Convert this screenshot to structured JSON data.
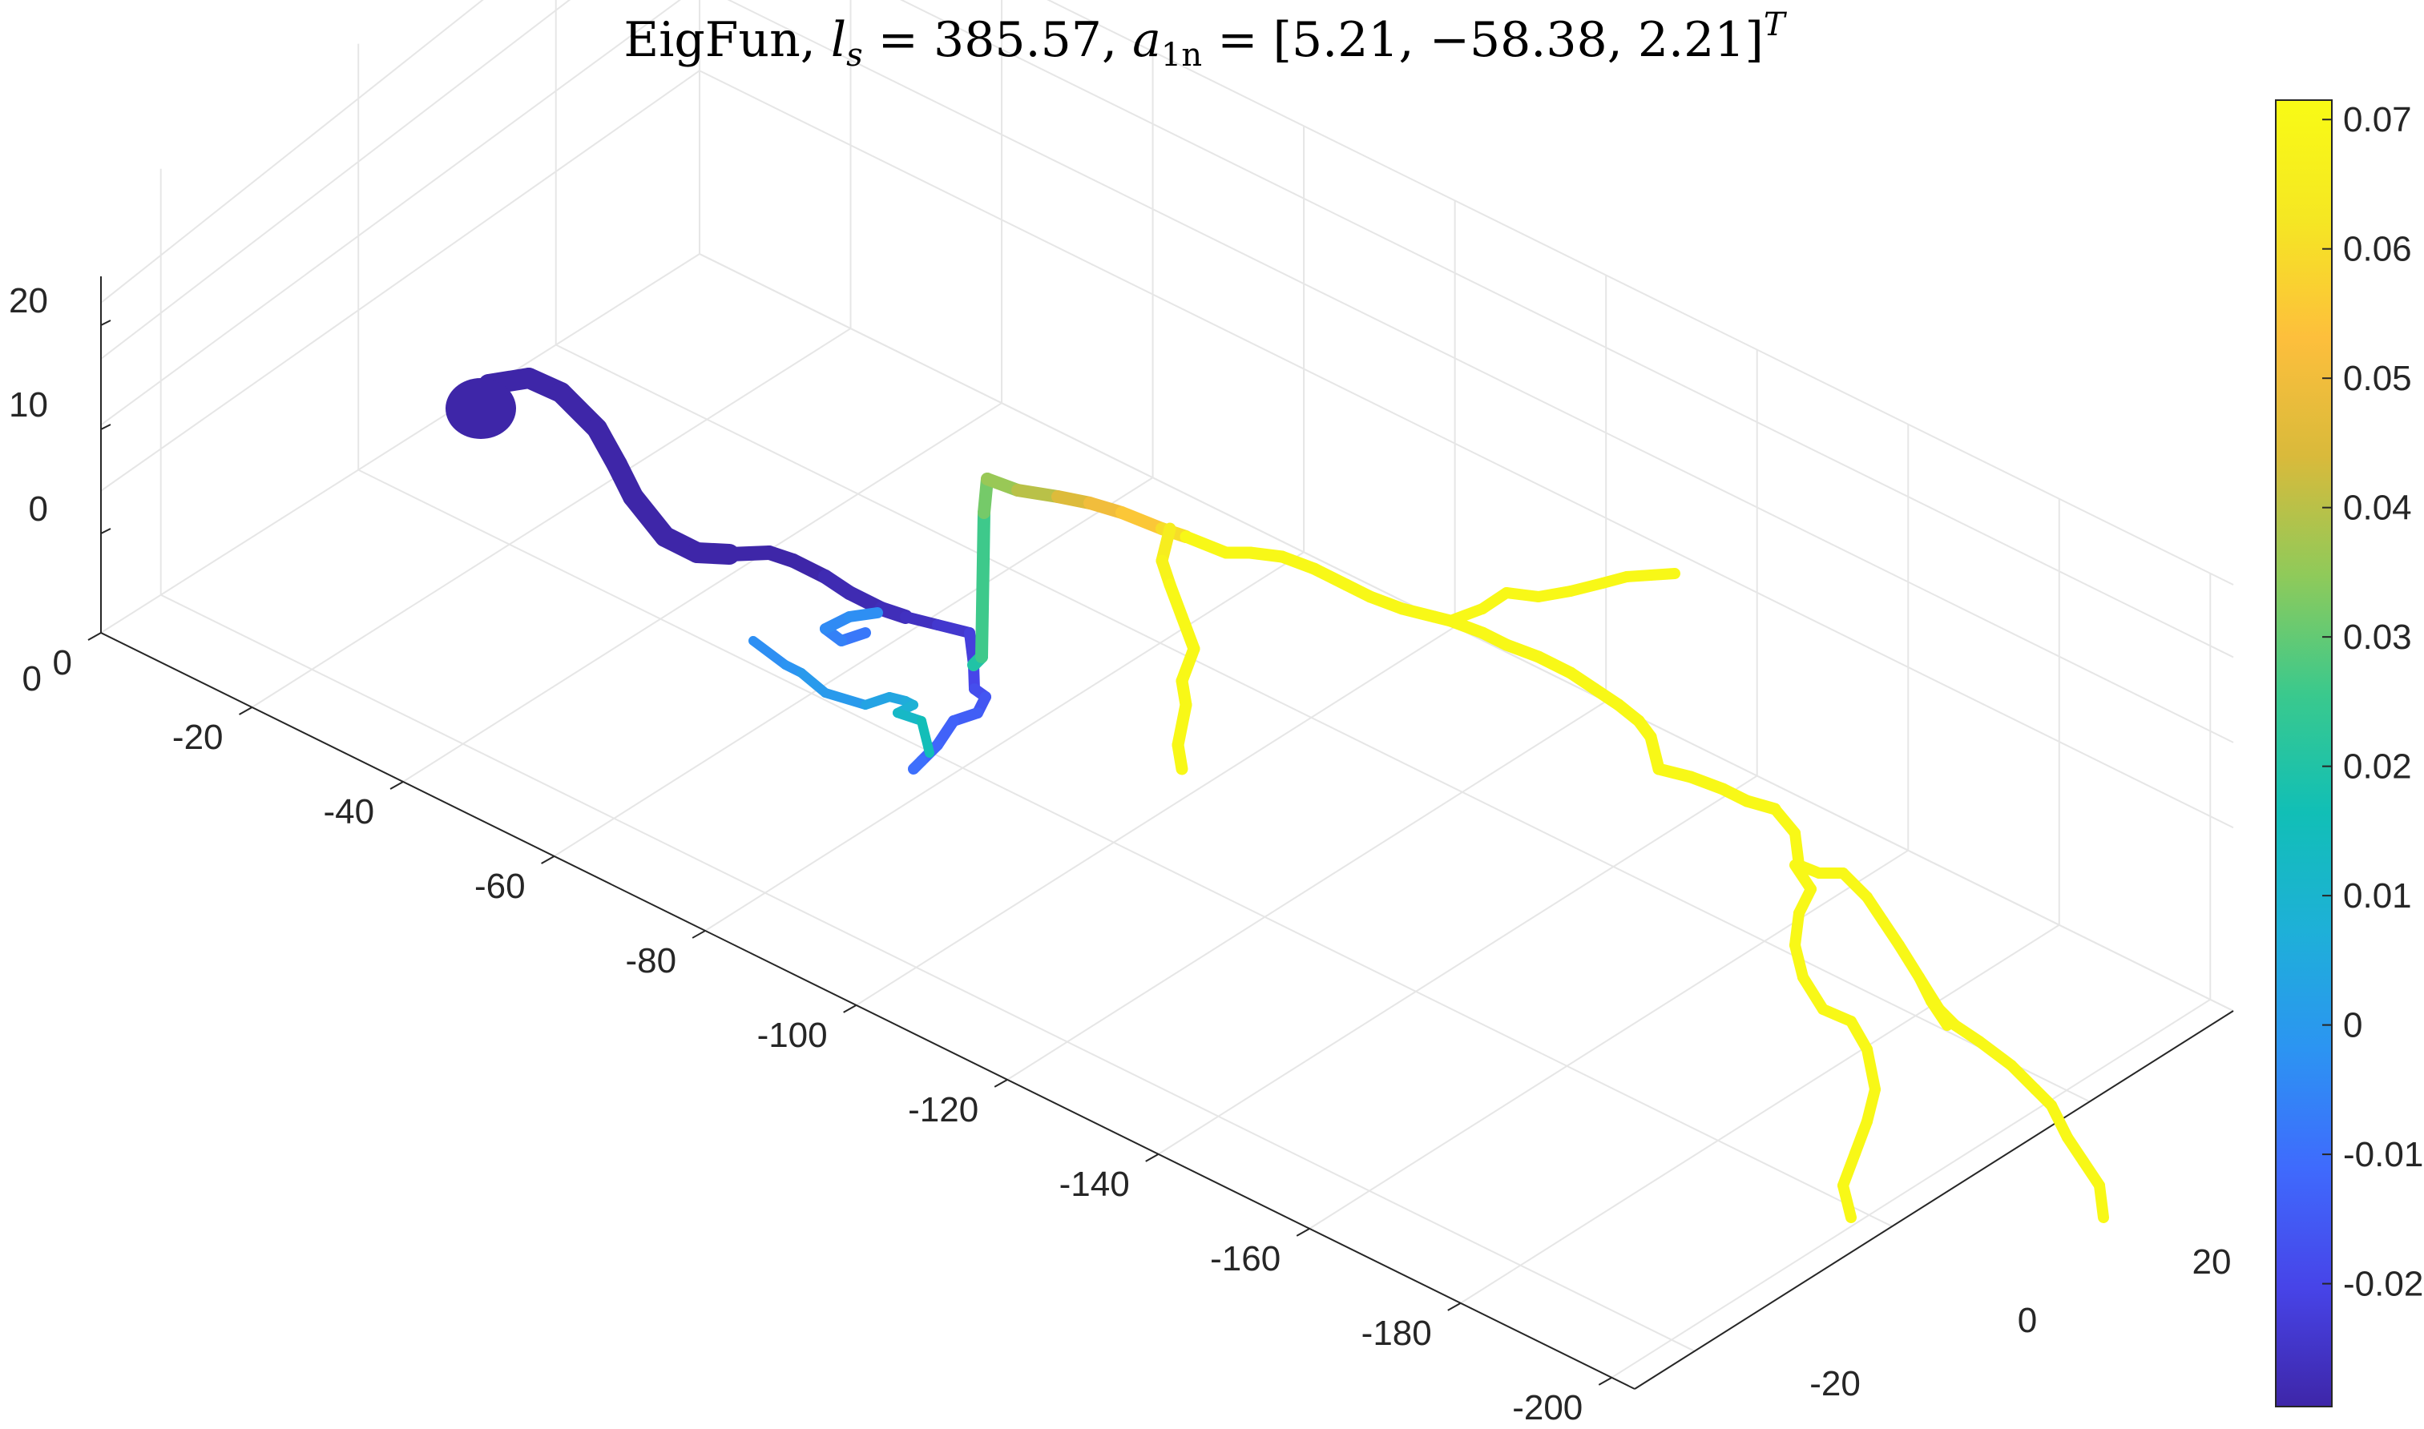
{
  "chart_data": {
    "type": "line",
    "plot_kind": "3d-tube-colored",
    "title_parts": {
      "prefix": "EigFun, ",
      "ls_symbol": "l",
      "ls_sub": "s",
      "ls_eq": " = 385.57,  ",
      "a_symbol": "a",
      "a_sub": "1n",
      "a_eq": " = [5.21, −58.38, 2.21]",
      "a_sup": "T"
    },
    "xlabel": "",
    "ylabel": "",
    "zlabel": "",
    "grid": true,
    "x_axis": {
      "ticks": [
        "0",
        "-20",
        "-40",
        "-60",
        "-80",
        "-100",
        "-120",
        "-140",
        "-160",
        "-180",
        "-200"
      ],
      "range": [
        -205,
        0
      ]
    },
    "y_axis": {
      "ticks": [
        "-20",
        "0",
        "20"
      ],
      "range": [
        -30,
        28
      ]
    },
    "z_axis": {
      "ticks": [
        "0",
        "10",
        "20"
      ],
      "range": [
        -10,
        30
      ]
    },
    "colorbar": {
      "ticks": [
        "-0.02",
        "-0.01",
        "0",
        "0.01",
        "0.02",
        "0.03",
        "0.04",
        "0.05",
        "0.06",
        "0.07"
      ],
      "range": [
        -0.0295,
        0.0715
      ],
      "colormap": [
        "#3e26a8",
        "#4744e8",
        "#3f6afd",
        "#2c94f2",
        "#1eb0d8",
        "#11bfb6",
        "#3ac98d",
        "#8fca5a",
        "#d9ba3b",
        "#fdbf3c",
        "#f5e723",
        "#f9fb15"
      ]
    },
    "series": [
      {
        "values": [
          -0.03,
          -0.03,
          -0.03,
          -0.03,
          -0.03,
          -0.03,
          -0.03,
          -0.03,
          -0.03,
          -0.03,
          -0.03,
          -0.03,
          -0.028,
          -0.028,
          -0.027,
          -0.026,
          -0.024,
          -0.022,
          -0.02,
          -0.018,
          -0.016,
          -0.014,
          -0.013,
          -0.012,
          -0.01,
          -0.008,
          -0.006,
          -0.004,
          -0.003,
          -0.003,
          -0.002,
          0.0,
          0.0,
          0.003,
          0.004,
          0.006,
          0.008,
          0.012,
          0.016,
          0.02,
          0.026,
          0.032,
          0.036,
          0.04,
          0.045,
          0.05,
          0.055,
          0.06,
          0.065,
          0.068,
          0.07,
          0.07,
          0.07,
          0.07,
          0.07,
          0.07,
          0.07,
          0.07,
          0.07
        ]
      }
    ]
  }
}
